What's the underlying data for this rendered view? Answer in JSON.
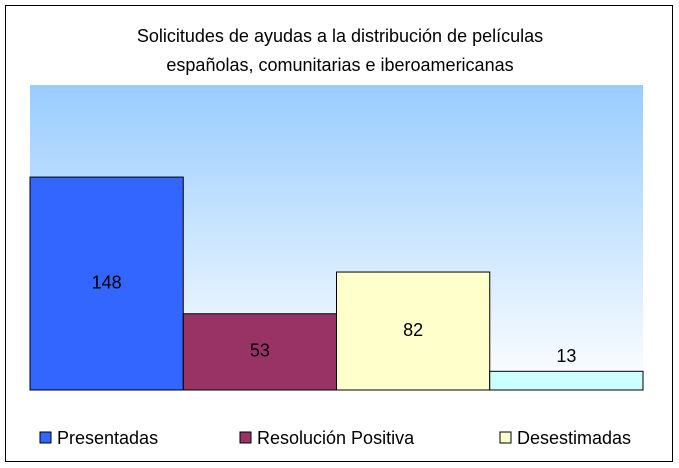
{
  "chart_data": {
    "type": "bar",
    "title": [
      "Solicitudes de ayudas a la distribución de películas",
      "españolas, comunitarias e iberoamericanas"
    ],
    "categories": [
      "Presentadas",
      "Resolución Positiva",
      "Desestimadas",
      null
    ],
    "values": [
      148,
      53,
      82,
      13
    ],
    "colors": [
      "#3366ff",
      "#993366",
      "#ffffcc",
      "#ccffff"
    ],
    "ylim": [
      0,
      212
    ],
    "legend": "bottom"
  }
}
